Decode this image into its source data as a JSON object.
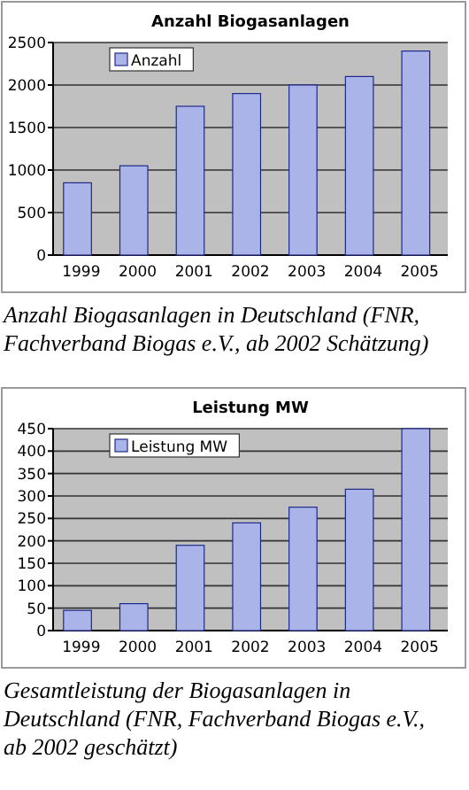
{
  "chart_data": [
    {
      "type": "bar",
      "title": "Anzahl Biogasanlagen",
      "categories": [
        "1999",
        "2000",
        "2001",
        "2002",
        "2003",
        "2004",
        "2005"
      ],
      "series": [
        {
          "name": "Anzahl",
          "color": "#aab4e8",
          "values": [
            850,
            1050,
            1750,
            1900,
            2000,
            2100,
            2400
          ]
        }
      ],
      "ylim": [
        0,
        2500
      ],
      "yticks": [
        0,
        500,
        1000,
        1500,
        2000,
        2500
      ],
      "grid": "y",
      "legend": "top left",
      "annotations": [
        "Anzahl Biogasanlagen in Deutschland (FNR, Fachverband Biogas e.V., ab 2002 Schätzung)"
      ]
    },
    {
      "type": "bar",
      "title": "Leistung MW",
      "categories": [
        "1999",
        "2000",
        "2001",
        "2002",
        "2003",
        "2004",
        "2005"
      ],
      "series": [
        {
          "name": "Leistung MW",
          "color": "#aab4e8",
          "values": [
            45,
            60,
            190,
            240,
            275,
            315,
            450
          ]
        }
      ],
      "ylim": [
        0,
        450
      ],
      "yticks": [
        0,
        50,
        100,
        150,
        200,
        250,
        300,
        350,
        400,
        450
      ],
      "grid": "y",
      "legend": "top left",
      "annotations": [
        "Gesamtleistung der Biogasanlagen in Deutschland (FNR, Fachverband Biogas e.V., ab 2002 geschätzt)"
      ]
    }
  ]
}
